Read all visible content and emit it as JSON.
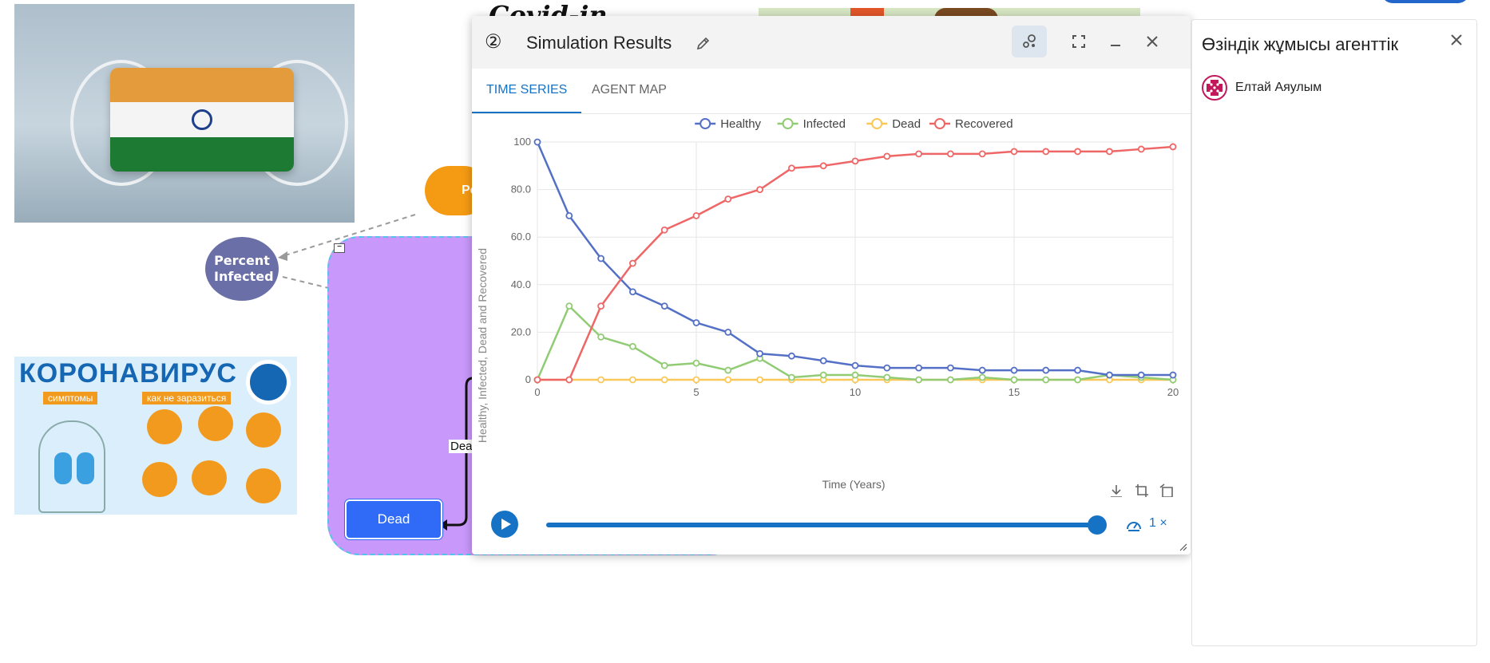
{
  "canvas": {
    "covid_title": "Covid-in",
    "cloud_label": "Pe",
    "percent_node": "Percent Infected",
    "dead_node": "Dead",
    "dead_edge_label": "Dea",
    "corona_poster": {
      "title": "КОРОНАВИРУС",
      "tag_symptoms": "симптомы",
      "tag_prevent": "как не заразиться"
    }
  },
  "window": {
    "number": "②",
    "title": "Simulation Results",
    "tabs": [
      {
        "label": "TIME SERIES",
        "active": true
      },
      {
        "label": "AGENT MAP",
        "active": false
      }
    ],
    "icons": {
      "edit": "pencil-icon",
      "layout": "layout-toggle-icon",
      "fullscreen": "fullscreen-icon",
      "minimize": "minimize-icon",
      "close": "close-icon"
    }
  },
  "playback": {
    "progress": 1.0,
    "speed_label": "1 ×"
  },
  "chart_data": {
    "type": "line",
    "title": "",
    "xlabel": "Time (Years)",
    "ylabel": "Healthy, Infected, Dead and Recovered",
    "xlim": [
      0,
      20
    ],
    "ylim": [
      0,
      100
    ],
    "x_ticks": [
      "0",
      "5",
      "10",
      "15",
      "20"
    ],
    "y_ticks": [
      "0",
      "20.0",
      "40.0",
      "60.0",
      "80.0",
      "100"
    ],
    "legend_position": "top-center",
    "grid": true,
    "x": [
      0,
      1,
      2,
      3,
      4,
      5,
      6,
      7,
      8,
      9,
      10,
      11,
      12,
      13,
      14,
      15,
      16,
      17,
      18,
      19,
      20
    ],
    "series": [
      {
        "name": "Healthy",
        "color": "#5470c6",
        "values": [
          100,
          69,
          51,
          37,
          31,
          24,
          20,
          11,
          10,
          8,
          6,
          5,
          5,
          5,
          4,
          4,
          4,
          4,
          2,
          2,
          2
        ]
      },
      {
        "name": "Infected",
        "color": "#91cc75",
        "values": [
          0,
          31,
          18,
          14,
          6,
          7,
          4,
          9,
          1,
          2,
          2,
          1,
          0,
          0,
          1,
          0,
          0,
          0,
          2,
          1,
          0
        ]
      },
      {
        "name": "Dead",
        "color": "#fac858",
        "values": [
          0,
          0,
          0,
          0,
          0,
          0,
          0,
          0,
          0,
          0,
          0,
          0,
          0,
          0,
          0,
          0,
          0,
          0,
          0,
          0,
          0
        ]
      },
      {
        "name": "Recovered",
        "color": "#ee6666",
        "values": [
          0,
          0,
          31,
          49,
          63,
          69,
          76,
          80,
          89,
          90,
          92,
          94,
          95,
          95,
          95,
          96,
          96,
          96,
          96,
          97,
          98
        ]
      }
    ]
  },
  "side_panel": {
    "title": "Өзіндік жұмысы агенттік",
    "members": [
      {
        "name": "Елтай Аяулым"
      }
    ]
  }
}
